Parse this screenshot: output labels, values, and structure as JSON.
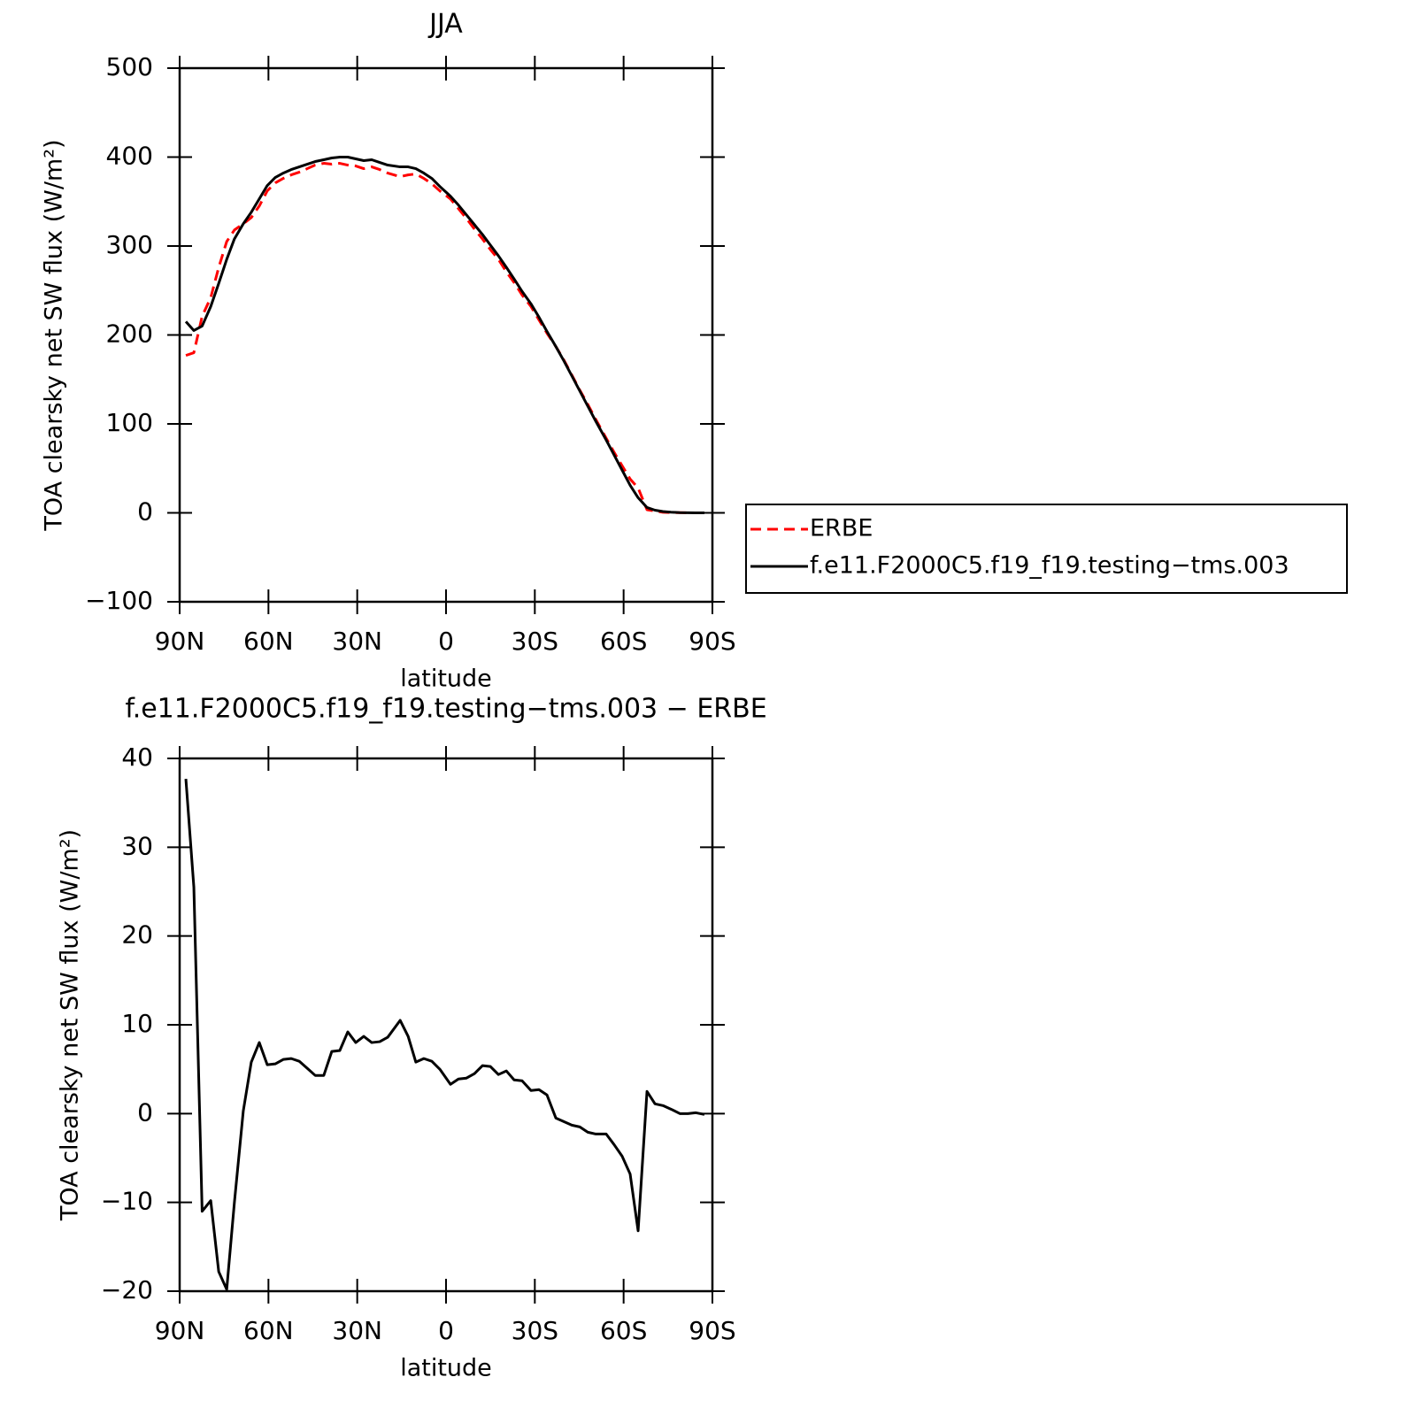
{
  "chart_data": [
    {
      "type": "line",
      "title": "JJA",
      "xlabel": "latitude",
      "ylabel": "TOA clearsky net SW flux (W/m²)",
      "x": [
        87.9,
        85.2,
        82.4,
        79.5,
        76.8,
        74.1,
        71.5,
        68.5,
        65.8,
        63.1,
        60.4,
        57.7,
        55.0,
        52.3,
        49.6,
        46.9,
        44.2,
        41.3,
        38.6,
        35.9,
        33.2,
        30.5,
        27.8,
        25.1,
        22.4,
        19.7,
        15.5,
        12.8,
        10.2,
        7.5,
        4.8,
        2.1,
        -1.5,
        -4.2,
        -6.9,
        -9.6,
        -12.3,
        -15.0,
        -17.7,
        -20.4,
        -23.0,
        -25.7,
        -28.7,
        -31.4,
        -34.1,
        -37.1,
        -39.8,
        -42.5,
        -45.2,
        -47.9,
        -50.6,
        -54.1,
        -56.8,
        -59.5,
        -62.2,
        -64.9,
        -67.9,
        -70.6,
        -73.3,
        -76.0,
        -79.0,
        -81.7,
        -84.3,
        -87.3
      ],
      "series": [
        {
          "name": "ERBE",
          "color": "#ff0000",
          "linestyle": "dashed",
          "values": [
            177,
            180,
            221,
            242,
            276,
            305,
            318,
            325,
            332,
            345,
            362,
            371,
            376,
            380,
            383,
            387,
            391,
            393,
            392,
            393,
            391,
            390,
            387,
            389,
            386,
            382,
            378,
            380,
            381,
            376,
            370,
            362,
            353,
            342,
            331,
            319,
            308,
            296,
            285,
            271,
            259,
            245,
            232,
            217,
            202,
            187,
            172,
            155,
            138,
            122,
            105,
            84,
            68,
            53,
            38,
            28,
            3.5,
            2,
            0.6,
            0.3,
            0.3,
            0.1,
            0,
            0
          ]
        },
        {
          "name": "f.e11.F2000C5.f19_f19.testing−tms.003",
          "color": "#000000",
          "linestyle": "solid",
          "values": [
            215,
            205,
            210,
            232,
            258,
            285,
            308,
            325,
            338,
            353,
            368,
            377,
            382,
            386,
            389,
            392,
            395,
            397,
            399,
            400,
            400,
            398,
            396,
            397,
            394,
            391,
            389,
            389,
            387,
            382,
            376,
            367,
            356,
            346,
            335,
            324,
            313,
            301,
            289,
            276,
            263,
            249,
            235,
            220,
            204,
            187,
            171,
            154,
            137,
            120,
            103,
            82,
            65,
            48,
            31,
            17,
            6,
            3,
            1.5,
            0.8,
            0.3,
            0.1,
            0,
            0
          ]
        }
      ],
      "xlim": [
        90,
        -90
      ],
      "xticks": [
        {
          "value": 90,
          "label": "90N"
        },
        {
          "value": 60,
          "label": "60N"
        },
        {
          "value": 30,
          "label": "30N"
        },
        0,
        {
          "value": -30,
          "label": "30S"
        },
        {
          "value": -60,
          "label": "60S"
        },
        {
          "value": -90,
          "label": "90S"
        }
      ],
      "ylim": [
        -100,
        500
      ],
      "yticks": [
        {
          "value": -100,
          "label": "−100"
        },
        0,
        100,
        200,
        300,
        400,
        500
      ],
      "legend": "right"
    },
    {
      "type": "line",
      "title": "f.e11.F2000C5.f19_f19.testing−tms.003 − ERBE",
      "xlabel": "latitude",
      "ylabel": "TOA clearsky net SW flux (W/m²)",
      "x": [
        87.9,
        85.2,
        82.4,
        79.5,
        76.8,
        74.1,
        71.5,
        68.5,
        65.8,
        63.1,
        60.4,
        57.7,
        55.0,
        52.3,
        49.6,
        46.9,
        44.2,
        41.3,
        38.6,
        35.9,
        33.2,
        30.5,
        27.8,
        25.1,
        22.4,
        19.7,
        15.5,
        12.8,
        10.2,
        7.5,
        4.8,
        2.1,
        -1.5,
        -4.2,
        -6.9,
        -9.6,
        -12.3,
        -15.0,
        -17.7,
        -20.4,
        -23.0,
        -25.7,
        -28.7,
        -31.4,
        -34.1,
        -37.1,
        -39.8,
        -42.5,
        -45.2,
        -47.9,
        -50.6,
        -54.1,
        -56.8,
        -59.5,
        -62.2,
        -64.9,
        -67.9,
        -70.6,
        -73.3,
        -76.0,
        -79.0,
        -81.7,
        -84.3,
        -87.3
      ],
      "series": [
        {
          "color": "#000000",
          "linestyle": "solid",
          "values": [
            37.7,
            25.5,
            -11,
            -9.8,
            -17.8,
            -19.8,
            -10,
            0.3,
            5.8,
            8,
            5.5,
            5.6,
            6.1,
            6.2,
            5.9,
            5.1,
            4.3,
            4.3,
            7,
            7.1,
            9.2,
            8.0,
            8.7,
            8.0,
            8.1,
            8.6,
            10.5,
            8.7,
            5.8,
            6.2,
            5.9,
            5.0,
            3.3,
            3.9,
            4.0,
            4.5,
            5.4,
            5.3,
            4.4,
            4.8,
            3.8,
            3.7,
            2.6,
            2.7,
            2.1,
            -0.5,
            -0.9,
            -1.3,
            -1.5,
            -2.1,
            -2.3,
            -2.3,
            -3.5,
            -4.8,
            -6.8,
            -13.2,
            2.5,
            1.1,
            0.9,
            0.5,
            0.0,
            0.0,
            0.1,
            -0.1
          ]
        }
      ],
      "xlim": [
        90,
        -90
      ],
      "xticks": [
        {
          "value": 90,
          "label": "90N"
        },
        {
          "value": 60,
          "label": "60N"
        },
        {
          "value": 30,
          "label": "30N"
        },
        0,
        {
          "value": -30,
          "label": "30S"
        },
        {
          "value": -60,
          "label": "60S"
        },
        {
          "value": -90,
          "label": "90S"
        }
      ],
      "ylim": [
        -20,
        40
      ],
      "yticks": [
        {
          "value": -20,
          "label": "−20"
        },
        {
          "value": -10,
          "label": "−10"
        },
        0,
        10,
        20,
        30,
        40
      ]
    }
  ]
}
